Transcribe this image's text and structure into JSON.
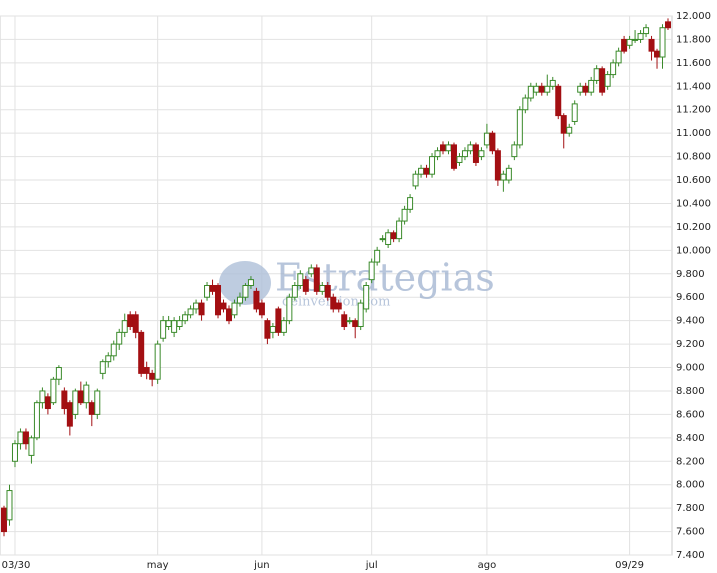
{
  "chart_data": {
    "type": "candlestick",
    "watermark": "Estrategias",
    "watermark_sub": "deinversion.com",
    "up_color": "#3a8a2a",
    "down_color": "#a30f12",
    "grid": true,
    "ylim": [
      7400,
      12000
    ],
    "yticks": [
      {
        "value": 7400,
        "label": "7.400"
      },
      {
        "value": 7600,
        "label": "7.600"
      },
      {
        "value": 7800,
        "label": "7.800"
      },
      {
        "value": 8000,
        "label": "8.000"
      },
      {
        "value": 8200,
        "label": "8.200"
      },
      {
        "value": 8400,
        "label": "8.400"
      },
      {
        "value": 8600,
        "label": "8.600"
      },
      {
        "value": 8800,
        "label": "8.800"
      },
      {
        "value": 9000,
        "label": "9.000"
      },
      {
        "value": 9200,
        "label": "9.200"
      },
      {
        "value": 9400,
        "label": "9.400"
      },
      {
        "value": 9600,
        "label": "9.600"
      },
      {
        "value": 9800,
        "label": "9.800"
      },
      {
        "value": 10000,
        "label": "10.000"
      },
      {
        "value": 10200,
        "label": "10.200"
      },
      {
        "value": 10400,
        "label": "10.400"
      },
      {
        "value": 10600,
        "label": "10.600"
      },
      {
        "value": 10800,
        "label": "10.800"
      },
      {
        "value": 11000,
        "label": "11.000"
      },
      {
        "value": 11200,
        "label": "11.200"
      },
      {
        "value": 11400,
        "label": "11.400"
      },
      {
        "value": 11600,
        "label": "11.600"
      },
      {
        "value": 11800,
        "label": "11.800"
      },
      {
        "value": 12000,
        "label": "12.000"
      }
    ],
    "xticks": [
      {
        "value": 2,
        "label": "03/30"
      },
      {
        "value": 28,
        "label": "may"
      },
      {
        "value": 47,
        "label": "jun"
      },
      {
        "value": 67,
        "label": "jul"
      },
      {
        "value": 88,
        "label": "ago"
      },
      {
        "value": 114,
        "label": "09/29"
      }
    ],
    "ohlc": [
      [
        7800,
        7820,
        7560,
        7600
      ],
      [
        7700,
        8000,
        7650,
        7950
      ],
      [
        8200,
        8380,
        8150,
        8350
      ],
      [
        8350,
        8480,
        8300,
        8450
      ],
      [
        8450,
        8480,
        8300,
        8350
      ],
      [
        8250,
        8420,
        8180,
        8400
      ],
      [
        8400,
        8720,
        8380,
        8700
      ],
      [
        8700,
        8830,
        8650,
        8800
      ],
      [
        8750,
        8780,
        8600,
        8650
      ],
      [
        8700,
        8920,
        8680,
        8900
      ],
      [
        8900,
        9020,
        8850,
        9000
      ],
      [
        8800,
        8830,
        8600,
        8650
      ],
      [
        8700,
        8720,
        8420,
        8500
      ],
      [
        8600,
        8820,
        8560,
        8800
      ],
      [
        8800,
        8880,
        8680,
        8700
      ],
      [
        8700,
        8880,
        8650,
        8850
      ],
      [
        8700,
        8720,
        8500,
        8600
      ],
      [
        8600,
        8820,
        8560,
        8800
      ],
      [
        8950,
        9070,
        8900,
        9050
      ],
      [
        9050,
        9130,
        9000,
        9100
      ],
      [
        9100,
        9230,
        9060,
        9200
      ],
      [
        9200,
        9330,
        9150,
        9300
      ],
      [
        9300,
        9460,
        9260,
        9400
      ],
      [
        9450,
        9480,
        9320,
        9350
      ],
      [
        9450,
        9480,
        9250,
        9300
      ],
      [
        9300,
        9320,
        8920,
        8950
      ],
      [
        9000,
        9050,
        8900,
        8950
      ],
      [
        8950,
        8980,
        8840,
        8900
      ],
      [
        8900,
        9230,
        8860,
        9200
      ],
      [
        9250,
        9440,
        9220,
        9400
      ],
      [
        9350,
        9440,
        9320,
        9400
      ],
      [
        9300,
        9430,
        9260,
        9400
      ],
      [
        9350,
        9440,
        9320,
        9400
      ],
      [
        9400,
        9480,
        9370,
        9450
      ],
      [
        9450,
        9530,
        9420,
        9500
      ],
      [
        9500,
        9580,
        9460,
        9550
      ],
      [
        9550,
        9580,
        9400,
        9450
      ],
      [
        9600,
        9730,
        9570,
        9700
      ],
      [
        9700,
        9750,
        9620,
        9650
      ],
      [
        9700,
        9720,
        9420,
        9450
      ],
      [
        9550,
        9580,
        9470,
        9500
      ],
      [
        9500,
        9530,
        9370,
        9400
      ],
      [
        9450,
        9580,
        9420,
        9550
      ],
      [
        9550,
        9640,
        9520,
        9600
      ],
      [
        9600,
        9720,
        9570,
        9700
      ],
      [
        9700,
        9780,
        9670,
        9750
      ],
      [
        9650,
        9680,
        9470,
        9500
      ],
      [
        9550,
        9580,
        9420,
        9450
      ],
      [
        9400,
        9420,
        9200,
        9250
      ],
      [
        9300,
        9380,
        9250,
        9350
      ],
      [
        9500,
        9520,
        9270,
        9300
      ],
      [
        9300,
        9430,
        9270,
        9400
      ],
      [
        9400,
        9630,
        9370,
        9600
      ],
      [
        9600,
        9730,
        9570,
        9700
      ],
      [
        9700,
        9830,
        9670,
        9800
      ],
      [
        9750,
        9780,
        9620,
        9650
      ],
      [
        9800,
        9880,
        9770,
        9850
      ],
      [
        9850,
        9880,
        9620,
        9650
      ],
      [
        9650,
        9730,
        9620,
        9700
      ],
      [
        9700,
        9730,
        9570,
        9600
      ],
      [
        9600,
        9630,
        9470,
        9500
      ],
      [
        9550,
        9580,
        9470,
        9500
      ],
      [
        9450,
        9480,
        9320,
        9350
      ],
      [
        9400,
        9430,
        9370,
        9400
      ],
      [
        9400,
        9420,
        9250,
        9350
      ],
      [
        9350,
        9580,
        9320,
        9550
      ],
      [
        9500,
        9730,
        9470,
        9700
      ],
      [
        9750,
        9930,
        9720,
        9900
      ],
      [
        9900,
        10030,
        9870,
        10000
      ],
      [
        10100,
        10130,
        10070,
        10100
      ],
      [
        10050,
        10180,
        10020,
        10150
      ],
      [
        10150,
        10170,
        10070,
        10100
      ],
      [
        10100,
        10280,
        10070,
        10250
      ],
      [
        10250,
        10380,
        10220,
        10350
      ],
      [
        10350,
        10480,
        10320,
        10450
      ],
      [
        10550,
        10680,
        10520,
        10650
      ],
      [
        10650,
        10730,
        10620,
        10700
      ],
      [
        10700,
        10730,
        10620,
        10650
      ],
      [
        10650,
        10830,
        10620,
        10800
      ],
      [
        10800,
        10880,
        10770,
        10850
      ],
      [
        10900,
        10930,
        10820,
        10850
      ],
      [
        10850,
        10930,
        10820,
        10900
      ],
      [
        10900,
        10920,
        10680,
        10700
      ],
      [
        10750,
        10830,
        10720,
        10800
      ],
      [
        10800,
        10880,
        10770,
        10850
      ],
      [
        10850,
        10930,
        10820,
        10900
      ],
      [
        10900,
        10920,
        10720,
        10750
      ],
      [
        10800,
        10880,
        10770,
        10850
      ],
      [
        10900,
        11080,
        10870,
        11000
      ],
      [
        11000,
        11020,
        10820,
        10850
      ],
      [
        10850,
        10870,
        10550,
        10600
      ],
      [
        10600,
        10680,
        10500,
        10650
      ],
      [
        10600,
        10730,
        10570,
        10700
      ],
      [
        10800,
        10930,
        10770,
        10900
      ],
      [
        10900,
        11230,
        10870,
        11200
      ],
      [
        11200,
        11330,
        11170,
        11300
      ],
      [
        11300,
        11430,
        11270,
        11400
      ],
      [
        11350,
        11430,
        11320,
        11400
      ],
      [
        11400,
        11430,
        11320,
        11350
      ],
      [
        11350,
        11500,
        11320,
        11400
      ],
      [
        11400,
        11480,
        11370,
        11450
      ],
      [
        11400,
        11420,
        11120,
        11150
      ],
      [
        11150,
        11170,
        10870,
        11000
      ],
      [
        11000,
        11080,
        10970,
        11050
      ],
      [
        11100,
        11280,
        11070,
        11250
      ],
      [
        11350,
        11430,
        11320,
        11400
      ],
      [
        11400,
        11430,
        11320,
        11350
      ],
      [
        11350,
        11480,
        11320,
        11450
      ],
      [
        11450,
        11580,
        11420,
        11550
      ],
      [
        11550,
        11570,
        11320,
        11350
      ],
      [
        11400,
        11530,
        11370,
        11500
      ],
      [
        11500,
        11630,
        11470,
        11600
      ],
      [
        11600,
        11730,
        11570,
        11700
      ],
      [
        11800,
        11830,
        11680,
        11700
      ],
      [
        11750,
        11830,
        11720,
        11800
      ],
      [
        11800,
        11880,
        11770,
        11800
      ],
      [
        11800,
        11880,
        11770,
        11850
      ],
      [
        11850,
        11930,
        11820,
        11900
      ],
      [
        11800,
        11830,
        11620,
        11700
      ],
      [
        11700,
        11720,
        11550,
        11650
      ],
      [
        11650,
        11930,
        11550,
        11900
      ],
      [
        11950,
        11980,
        11880,
        11900
      ]
    ]
  }
}
